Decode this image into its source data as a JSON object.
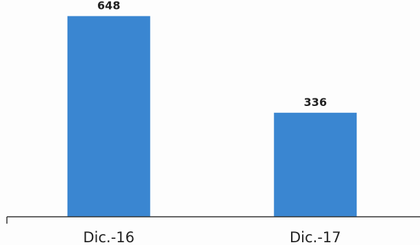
{
  "chart_data": {
    "type": "bar",
    "categories": [
      "Dic.-16",
      "Dic.-17"
    ],
    "values": [
      648,
      336
    ],
    "title": "",
    "xlabel": "",
    "ylabel": "",
    "ylim": [
      0,
      700
    ],
    "grid": false,
    "legend": "none",
    "colors": {
      "bar": "#3a86d1"
    }
  }
}
